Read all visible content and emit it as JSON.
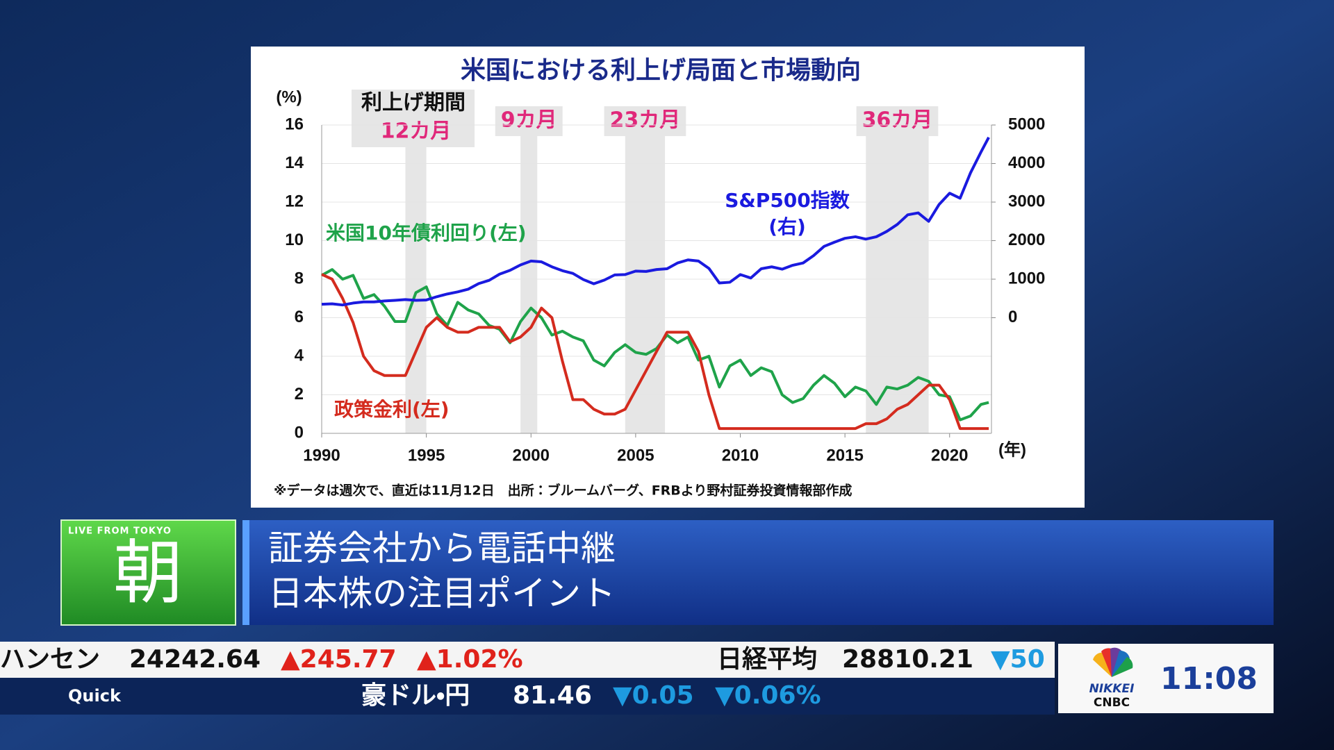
{
  "chart_data": {
    "type": "line",
    "title": "米国における利上げ局面と市場動向",
    "ylabel": "(%)",
    "xlabel": "(年)",
    "footnote": "※データは週次で、直近は11月12日　出所：ブルームバーグ、FRBより野村証券投資情報部作成",
    "hike_header": "利上げ期間",
    "hike_periods": [
      {
        "start": 1994.0,
        "end": 1995.0,
        "label": "12カ月"
      },
      {
        "start": 1999.5,
        "end": 2000.3,
        "label": "9カ月"
      },
      {
        "start": 2004.5,
        "end": 2006.4,
        "label": "23カ月"
      },
      {
        "start": 2016.0,
        "end": 2019.0,
        "label": "36カ月"
      }
    ],
    "xlim": [
      1990,
      2022
    ],
    "xticks": [
      1990,
      1995,
      2000,
      2005,
      2010,
      2015,
      2020
    ],
    "ylim": [
      0,
      16
    ],
    "yticks": [
      0,
      2,
      4,
      6,
      8,
      10,
      12,
      14,
      16
    ],
    "y2lim": [
      -3000,
      5000
    ],
    "y2ticks": [
      0,
      1000,
      2000,
      3000,
      4000,
      5000
    ],
    "grid": true,
    "x": [
      1990,
      1990.5,
      1991,
      1991.5,
      1992,
      1992.5,
      1993,
      1993.5,
      1994,
      1994.5,
      1995,
      1995.5,
      1996,
      1996.5,
      1997,
      1997.5,
      1998,
      1998.5,
      1999,
      1999.5,
      2000,
      2000.5,
      2001,
      2001.5,
      2002,
      2002.5,
      2003,
      2003.5,
      2004,
      2004.5,
      2005,
      2005.5,
      2006,
      2006.5,
      2007,
      2007.5,
      2008,
      2008.5,
      2009,
      2009.5,
      2010,
      2010.5,
      2011,
      2011.5,
      2012,
      2012.5,
      2013,
      2013.5,
      2014,
      2014.5,
      2015,
      2015.5,
      2016,
      2016.5,
      2017,
      2017.5,
      2018,
      2018.5,
      2019,
      2019.5,
      2020,
      2020.5,
      2021,
      2021.5,
      2021.87
    ],
    "series": [
      {
        "name": "米国10年債利回り(左)",
        "color": "#1fa34a",
        "axis": "y",
        "values": [
          8.2,
          8.5,
          8.0,
          8.2,
          7.0,
          7.2,
          6.6,
          5.8,
          5.8,
          7.3,
          7.6,
          6.2,
          5.6,
          6.8,
          6.4,
          6.2,
          5.6,
          5.4,
          4.7,
          5.8,
          6.5,
          6.0,
          5.1,
          5.3,
          5.0,
          4.8,
          3.8,
          3.5,
          4.2,
          4.6,
          4.2,
          4.1,
          4.4,
          5.1,
          4.7,
          5.0,
          3.8,
          4.0,
          2.4,
          3.5,
          3.8,
          3.0,
          3.4,
          3.2,
          2.0,
          1.6,
          1.8,
          2.5,
          3.0,
          2.6,
          1.9,
          2.4,
          2.2,
          1.5,
          2.4,
          2.3,
          2.5,
          2.9,
          2.7,
          2.0,
          1.9,
          0.7,
          0.9,
          1.5,
          1.6
        ]
      },
      {
        "name": "政策金利(左)",
        "color": "#d42b1e",
        "axis": "y",
        "values": [
          8.25,
          8.0,
          7.0,
          5.75,
          4.0,
          3.25,
          3.0,
          3.0,
          3.0,
          4.25,
          5.5,
          6.0,
          5.5,
          5.25,
          5.25,
          5.5,
          5.5,
          5.5,
          4.75,
          5.0,
          5.5,
          6.5,
          6.0,
          3.75,
          1.75,
          1.75,
          1.25,
          1.0,
          1.0,
          1.25,
          2.25,
          3.25,
          4.25,
          5.25,
          5.25,
          5.25,
          4.25,
          2.0,
          0.25,
          0.25,
          0.25,
          0.25,
          0.25,
          0.25,
          0.25,
          0.25,
          0.25,
          0.25,
          0.25,
          0.25,
          0.25,
          0.25,
          0.5,
          0.5,
          0.75,
          1.25,
          1.5,
          2.0,
          2.5,
          2.5,
          1.75,
          0.25,
          0.25,
          0.25,
          0.25
        ]
      },
      {
        "name": "S&P500指数",
        "axis_note": "(右)",
        "color": "#1a1adf",
        "axis": "y2",
        "values": [
          350,
          360,
          330,
          380,
          410,
          410,
          435,
          450,
          470,
          450,
          460,
          545,
          615,
          670,
          740,
          885,
          970,
          1130,
          1230,
          1370,
          1470,
          1450,
          1320,
          1220,
          1150,
          990,
          880,
          975,
          1110,
          1120,
          1210,
          1200,
          1250,
          1270,
          1420,
          1500,
          1470,
          1280,
          900,
          920,
          1120,
          1030,
          1270,
          1320,
          1260,
          1360,
          1420,
          1610,
          1850,
          1960,
          2060,
          2100,
          2040,
          2100,
          2240,
          2420,
          2670,
          2720,
          2500,
          2940,
          3230,
          3100,
          3760,
          4300,
          4680
        ]
      }
    ]
  },
  "banner": {
    "badge": "LIVE FROM TOKYO",
    "program": "朝",
    "headline": [
      "証券会社から電話中継",
      "日本株の注目ポイント"
    ]
  },
  "ticker": {
    "row1": [
      "ハンセン",
      "24242.64",
      "▲245.77",
      "▲1.02%",
      "日経平均",
      "28810.21",
      "▼50"
    ],
    "row2": [
      "Quick",
      "豪ドル・円",
      "81.46",
      "▼0.05",
      "▼0.06%"
    ],
    "logo": [
      "NIKKEI",
      "CNBC"
    ],
    "clock": "11:08"
  }
}
